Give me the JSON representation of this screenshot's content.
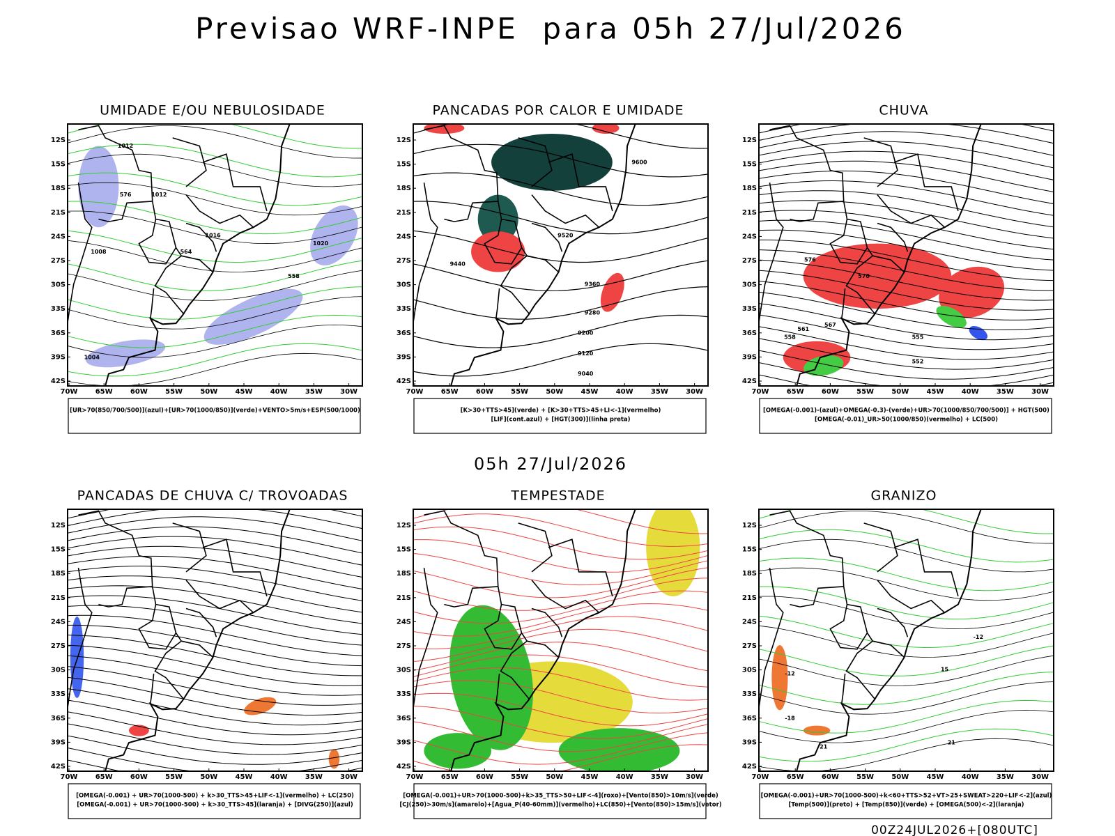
{
  "header": {
    "title": "Previsao WRF-INPE  para 05h 27/Jul/2026"
  },
  "mid_label": "05h 27/Jul/2026",
  "footer": "00Z24JUL2026+[080UTC]",
  "axes": {
    "lat_labels": [
      "12S",
      "15S",
      "18S",
      "21S",
      "24S",
      "27S",
      "30S",
      "33S",
      "36S",
      "39S",
      "42S"
    ],
    "lon_labels": [
      "70W",
      "65W",
      "60W",
      "55W",
      "50W",
      "45W",
      "40W",
      "35W",
      "30W"
    ]
  },
  "panels": [
    {
      "title": "UMIDADE E/OU NEBULOSIDADE",
      "legend": [
        "[UR>70(850/700/500)](azul)+[UR>70(1000/850)](verde)+VENTO>5m/s+ESP(500/1000)"
      ],
      "contour_labels": [
        "1012",
        "1012",
        "1016",
        "1020",
        "1008",
        "1004",
        "576",
        "564",
        "558"
      ]
    },
    {
      "title": "PANCADAS POR CALOR E UMIDADE",
      "legend": [
        "[K>30+TTS>45](verde) + [K>30+TTS>45+LI<-1](vermelho)",
        "[LIF](cont.azul) + [HGT(300)](linha preta)"
      ],
      "contour_labels": [
        "9600",
        "9520",
        "9440",
        "9360",
        "9280",
        "9200",
        "9120",
        "9040"
      ]
    },
    {
      "title": "CHUVA",
      "legend": [
        "[OMEGA(-0.001)-(azul)+OMEGA(-0.3)-(verde)+UR>70(1000/850/700/500)] + HGT(500)",
        "[OMEGA(-0.01)_UR>50(1000/850)(vermelho) + LC(500)"
      ],
      "contour_labels": [
        "576",
        "570",
        "567",
        "561",
        "558",
        "555",
        "552"
      ]
    },
    {
      "title": "PANCADAS DE CHUVA C/ TROVOADAS",
      "legend": [
        "[OMEGA(-0.001) + UR>70(1000-500) + k>30_TTS>45+LIF<-1](vermelho) + LC(250)",
        "[OMEGA(-0.001) + UR>70(1000-500) + k>30_TTS>45](laranja) + [DIVG(250)](azul)"
      ],
      "contour_labels": []
    },
    {
      "title": "TEMPESTADE",
      "legend": [
        "[OMEGA(-0.001)+UR>70(1000-500)+k>35_TTS>50+LIF<-4](roxo)+[Vento(850)>10m/s](verde)",
        "[CJ(250)>30m/s](amarelo)+[Agua_P(40-60mm)](vermelho)+LC(850)+[Vento(850)>15m/s](vetor)"
      ],
      "contour_labels": []
    },
    {
      "title": "GRANIZO",
      "legend": [
        "[OMEGA(-0.001)+UR>70(1000-500)+k<60+TTS>52+VT>25+SWEAT>220+LIF<-2](azul)",
        "[Temp(500)](preto) + [Temp(850)](verde) + [OMEGA(500)<-2](laranja)"
      ],
      "contour_labels": [
        "-12",
        "-12",
        "15",
        "-18",
        "21",
        "21"
      ]
    }
  ]
}
